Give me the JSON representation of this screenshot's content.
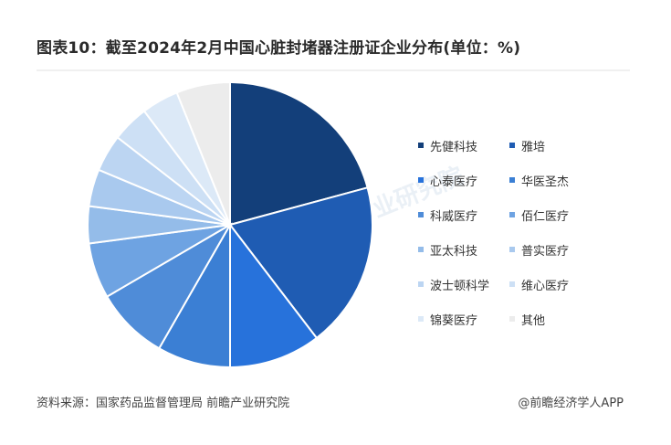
{
  "chart_data": {
    "type": "pie",
    "title": "图表10：截至2024年2月中国心脏封堵器注册证企业分布(单位：%)",
    "legend_placement": "right",
    "series": [
      {
        "name": "先健科技",
        "value": 20.8,
        "color": "#133f7a"
      },
      {
        "name": "雅培",
        "value": 18.8,
        "color": "#1f5cb3"
      },
      {
        "name": "心泰医疗",
        "value": 10.4,
        "color": "#2772db"
      },
      {
        "name": "华医圣杰",
        "value": 8.3,
        "color": "#3b7fd4"
      },
      {
        "name": "科威医疗",
        "value": 8.3,
        "color": "#4f8cd8"
      },
      {
        "name": "佰仁医疗",
        "value": 6.3,
        "color": "#6ea3e2"
      },
      {
        "name": "亚太科技",
        "value": 4.2,
        "color": "#94bce9"
      },
      {
        "name": "普实医疗",
        "value": 4.2,
        "color": "#a9c9ee"
      },
      {
        "name": "波士顿科学",
        "value": 4.2,
        "color": "#bcd5f2"
      },
      {
        "name": "维心医疗",
        "value": 4.2,
        "color": "#cde0f5"
      },
      {
        "name": "锦葵医疗",
        "value": 4.2,
        "color": "#dce9f7"
      },
      {
        "name": "其他",
        "value": 6.1,
        "color": "#ececec"
      }
    ]
  },
  "footer": {
    "source": "资料来源：国家药品监督管理局 前瞻产业研究院",
    "brand": "@前瞻经济学人APP"
  },
  "watermark": "前瞻产业研究院"
}
